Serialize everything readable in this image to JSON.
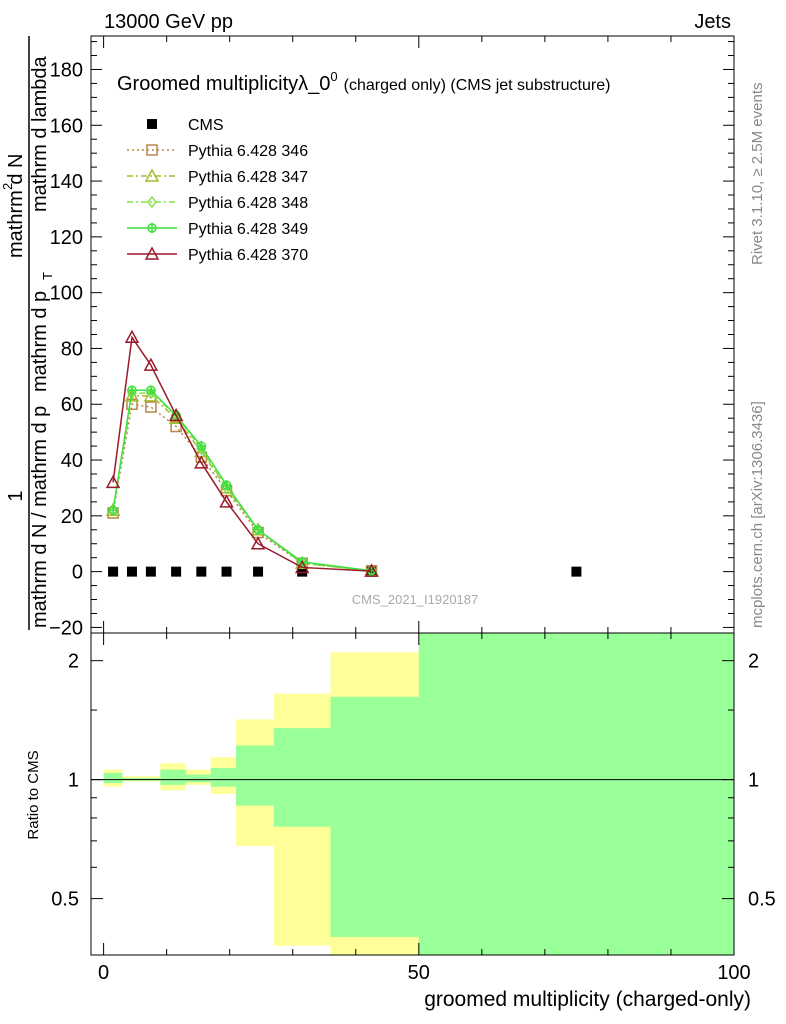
{
  "header": {
    "left": "13000 GeV pp",
    "right": "Jets"
  },
  "side_labels": {
    "rivet": "Rivet 3.1.10, ≥ 2.5M events",
    "mcplots": "mcplots.cern.ch [arXiv:1306.3436]"
  },
  "watermark": "CMS_2021_I1920187",
  "main_plot": {
    "title_main": "Groomed multiplicityλ_0",
    "title_sup": "0",
    "title_tail": "(charged only) (CMS jet substructure)",
    "ylabel_numerator": "1",
    "ylabel_denominator": "mathrm d N / mathrm d p",
    "ylabel_mid_sub": "T",
    "ylabel_mid": "mathrm d p",
    "ylabel_top": "mathrm d",
    "ylabel_top2": "2",
    "ylabel_topN": "N",
    "ylabel_lambda": "mathrm d lambda",
    "ylabel_full_bottom": "mathrm d N / mathrm d p_T mathrm d p_T mathrm d lambda",
    "ylim": [
      -22,
      192
    ],
    "yticks": [
      -20,
      0,
      20,
      40,
      60,
      80,
      100,
      120,
      140,
      160,
      180
    ],
    "ytick_labels": [
      "−20",
      "0",
      "20",
      "40",
      "60",
      "80",
      "100",
      "120",
      "140",
      "160",
      "180"
    ]
  },
  "ratio_plot": {
    "ylabel": "Ratio to CMS",
    "yticks": [
      0.5,
      1,
      2
    ],
    "ytick_labels": [
      "0.5",
      "1",
      "2"
    ],
    "ylim": [
      0.36,
      2.35
    ]
  },
  "xaxis": {
    "label": "groomed multiplicity (charged-only)",
    "xlim": [
      -2,
      100
    ],
    "xticks": [
      0,
      50,
      100
    ],
    "xtick_labels": [
      "0",
      "50",
      "100"
    ]
  },
  "legend": [
    {
      "name": "CMS",
      "color": "#000000",
      "marker": "square-filled",
      "line": "none"
    },
    {
      "name": "Pythia 6.428 346",
      "color": "#b8874a",
      "marker": "square-open",
      "line": "dotted"
    },
    {
      "name": "Pythia 6.428 347",
      "color": "#a8b830",
      "marker": "triangle-open",
      "line": "dashdot"
    },
    {
      "name": "Pythia 6.428 348",
      "color": "#88e050",
      "marker": "diamond-open",
      "line": "dashdot"
    },
    {
      "name": "Pythia 6.428 349",
      "color": "#40e040",
      "marker": "circle-cross",
      "line": "solid"
    },
    {
      "name": "Pythia 6.428 370",
      "color": "#9b1a2a",
      "marker": "triangle-open",
      "line": "solid"
    }
  ],
  "chart_data": {
    "type": "line",
    "xlabel": "groomed multiplicity (charged-only)",
    "x": [
      1.5,
      4.5,
      7.5,
      11.5,
      15.5,
      19.5,
      24.5,
      31.5,
      42.5
    ],
    "series": [
      {
        "name": "CMS",
        "x": [
          1.5,
          4.5,
          7.5,
          11.5,
          15.5,
          19.5,
          24.5,
          31.5,
          42.5,
          75
        ],
        "values": [
          0,
          0,
          0,
          0,
          0,
          0,
          0,
          0,
          0,
          0
        ]
      },
      {
        "name": "Pythia 6.428 346",
        "values": [
          21,
          60,
          59,
          52,
          41,
          29,
          14,
          3,
          0.3
        ]
      },
      {
        "name": "Pythia 6.428 347",
        "values": [
          22,
          63,
          63,
          55,
          43,
          30,
          15,
          3,
          0.3
        ]
      },
      {
        "name": "Pythia 6.428 348",
        "values": [
          22,
          64,
          64,
          56,
          44,
          30,
          15,
          3,
          0.3
        ]
      },
      {
        "name": "Pythia 6.428 349",
        "values": [
          22,
          65,
          65,
          56,
          45,
          31,
          15,
          3.5,
          0.3
        ]
      },
      {
        "name": "Pythia 6.428 370",
        "values": [
          32,
          84,
          74,
          56,
          39,
          25,
          10,
          1.5,
          0.2
        ]
      }
    ],
    "ratio_band": {
      "bins": [
        [
          0,
          3
        ],
        [
          3,
          6
        ],
        [
          6,
          9
        ],
        [
          9,
          13
        ],
        [
          13,
          17
        ],
        [
          17,
          21
        ],
        [
          21,
          27
        ],
        [
          27,
          36
        ],
        [
          36,
          50
        ],
        [
          50,
          100
        ]
      ],
      "yellow_low": [
        0.96,
        0.99,
        0.99,
        0.94,
        0.97,
        0.92,
        0.68,
        0.38,
        0.36,
        0.36
      ],
      "yellow_high": [
        1.06,
        1.02,
        1.02,
        1.1,
        1.06,
        1.14,
        1.42,
        1.65,
        2.1,
        2.35
      ],
      "green_low": [
        0.98,
        0.995,
        0.995,
        0.97,
        0.985,
        0.96,
        0.86,
        0.76,
        0.4,
        0.36
      ],
      "green_high": [
        1.04,
        1.01,
        1.01,
        1.06,
        1.03,
        1.07,
        1.22,
        1.35,
        1.62,
        2.35
      ]
    }
  }
}
